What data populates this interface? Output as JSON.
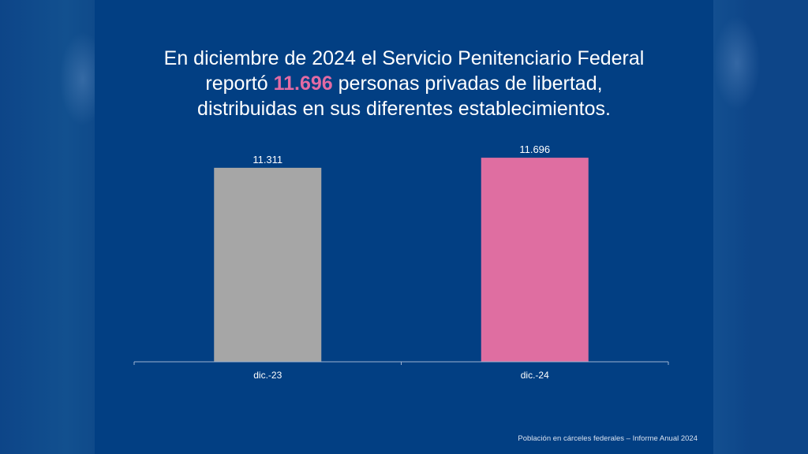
{
  "headline": {
    "line1": "En diciembre de 2024 el Servicio Penitenciario Federal",
    "line2_prefix": "reportó ",
    "line2_highlight": "11.696",
    "line2_suffix": " personas privadas de libertad,",
    "line3": "distribuidas en sus diferentes establecimientos."
  },
  "colors": {
    "background": "#023f83",
    "highlight": "#e36aa3",
    "bar_2023": "#a6a6a6",
    "bar_2024": "#df6ea1",
    "axis": "#9fb3d1",
    "text": "#ffffff"
  },
  "footer": "Población en cárceles federales – Informe Anual 2024",
  "chart_data": {
    "type": "bar",
    "title": "",
    "xlabel": "",
    "ylabel": "",
    "categories": [
      "dic.-23",
      "dic.-24"
    ],
    "values": [
      11311,
      11696
    ],
    "data_labels": [
      "11.311",
      "11.696"
    ],
    "bar_colors": [
      "#a6a6a6",
      "#df6ea1"
    ],
    "ylim": [
      3900,
      12000
    ],
    "grid": false,
    "legend": "none"
  }
}
